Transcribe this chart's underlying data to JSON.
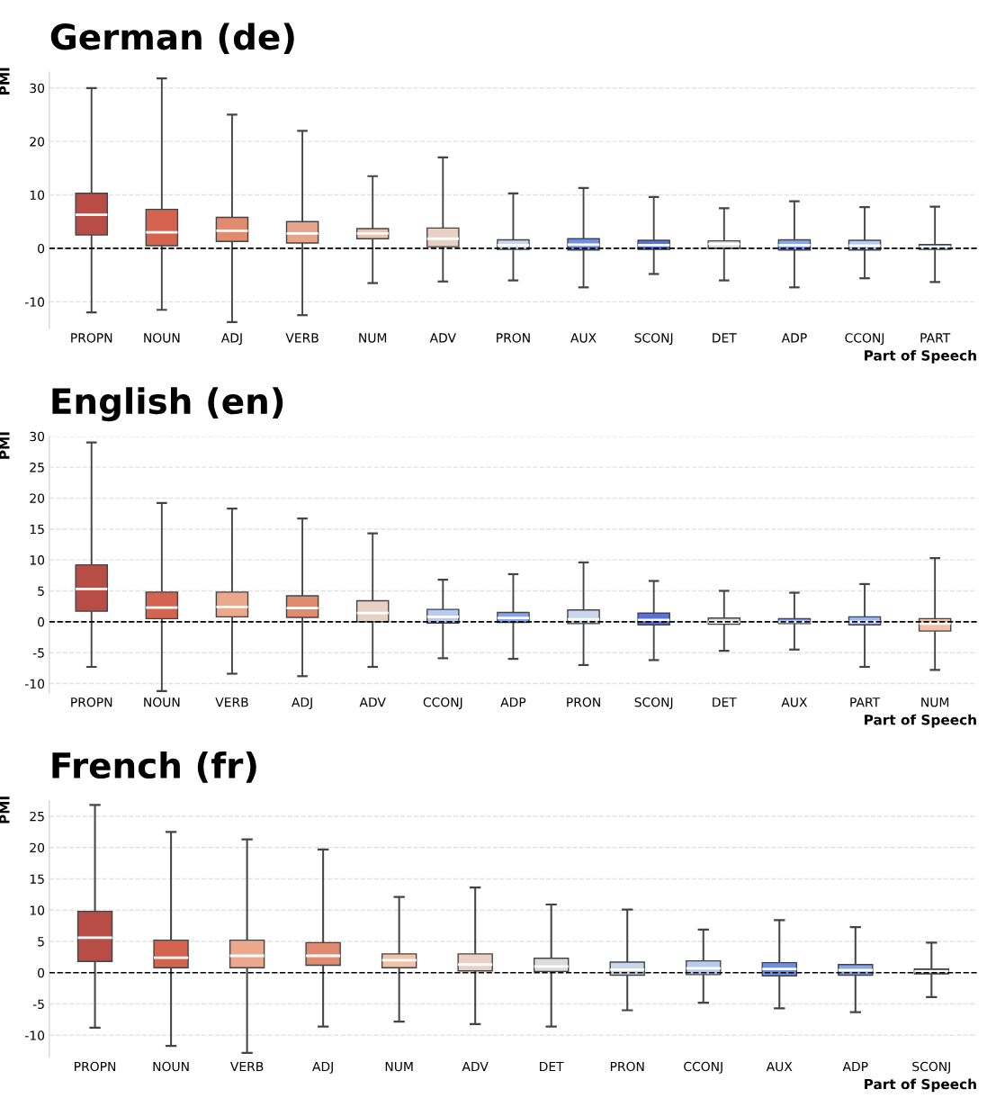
{
  "chart_data": [
    {
      "type": "box",
      "title": "German (de)",
      "xlabel": "Part of Speech",
      "ylabel": "PMI",
      "ylim": [
        -15,
        33
      ],
      "yticks": [
        -10,
        0,
        10,
        20,
        30
      ],
      "grid": "y",
      "ref_lines": [
        {
          "axis": "y",
          "value": 0,
          "color": "#000000",
          "line_style": "dashed"
        }
      ],
      "categories": [
        "PROPN",
        "NOUN",
        "ADJ",
        "VERB",
        "NUM",
        "ADV",
        "PRON",
        "AUX",
        "SCONJ",
        "DET",
        "ADP",
        "CCONJ",
        "PART"
      ],
      "colors": [
        "#b84d45",
        "#d4634f",
        "#e08a70",
        "#e8a488",
        "#f0c2a8",
        "#e8d0c4",
        "#c9d6ec",
        "#6f8fe0",
        "#5b72d0",
        "#dcdcdc",
        "#86a6ee",
        "#b6ccf2",
        "#9ab6f2"
      ],
      "boxes": [
        {
          "low": -12,
          "q1": 2.5,
          "median": 6.3,
          "q3": 10.3,
          "high": 30
        },
        {
          "low": -11.5,
          "q1": 0.5,
          "median": 3,
          "q3": 7.3,
          "high": 31.8
        },
        {
          "low": -13.8,
          "q1": 1.3,
          "median": 3.3,
          "q3": 5.8,
          "high": 25
        },
        {
          "low": -12.5,
          "q1": 1,
          "median": 2.8,
          "q3": 5,
          "high": 22
        },
        {
          "low": -6.5,
          "q1": 1.8,
          "median": 2.8,
          "q3": 3.7,
          "high": 13.5
        },
        {
          "low": -6.2,
          "q1": 0.3,
          "median": 1.8,
          "q3": 3.8,
          "high": 17
        },
        {
          "low": -6,
          "q1": -0.2,
          "median": 0.6,
          "q3": 1.6,
          "high": 10.3
        },
        {
          "low": -7.3,
          "q1": -0.3,
          "median": 0.7,
          "q3": 1.8,
          "high": 11.3
        },
        {
          "low": -4.8,
          "q1": -0.2,
          "median": 0.6,
          "q3": 1.5,
          "high": 9.6
        },
        {
          "low": -6,
          "q1": 0,
          "median": 0.8,
          "q3": 1.4,
          "high": 7.5
        },
        {
          "low": -7.3,
          "q1": -0.3,
          "median": 0.6,
          "q3": 1.6,
          "high": 8.8
        },
        {
          "low": -5.6,
          "q1": -0.3,
          "median": 0.5,
          "q3": 1.5,
          "high": 7.7
        },
        {
          "low": -6.3,
          "q1": -0.2,
          "median": 0.2,
          "q3": 0.7,
          "high": 7.8
        }
      ]
    },
    {
      "type": "box",
      "title": "English (en)",
      "xlabel": "Part of Speech",
      "ylabel": "PMI",
      "ylim": [
        -11.5,
        30
      ],
      "yticks": [
        -10,
        -5,
        0,
        5,
        10,
        15,
        20,
        25,
        30
      ],
      "grid": "y",
      "ref_lines": [
        {
          "axis": "y",
          "value": 0,
          "color": "#000000",
          "line_style": "dashed"
        }
      ],
      "categories": [
        "PROPN",
        "NOUN",
        "VERB",
        "ADJ",
        "ADV",
        "CCONJ",
        "ADP",
        "PRON",
        "SCONJ",
        "DET",
        "AUX",
        "PART",
        "NUM"
      ],
      "colors": [
        "#b84d45",
        "#d4634f",
        "#eaa88c",
        "#e08a70",
        "#e8d0c4",
        "#b6ccf2",
        "#86a6ee",
        "#c9d6ec",
        "#5b72d0",
        "#dcdcdc",
        "#6f8fe0",
        "#9ab6f2",
        "#f0c2a8"
      ],
      "boxes": [
        {
          "low": -7.3,
          "q1": 1.7,
          "median": 5.3,
          "q3": 9.2,
          "high": 29
        },
        {
          "low": -11.2,
          "q1": 0.5,
          "median": 2.3,
          "q3": 4.8,
          "high": 19.2
        },
        {
          "low": -8.4,
          "q1": 0.8,
          "median": 2.4,
          "q3": 4.8,
          "high": 18.3
        },
        {
          "low": -8.8,
          "q1": 0.7,
          "median": 2.2,
          "q3": 4.2,
          "high": 16.7
        },
        {
          "low": -7.3,
          "q1": 0,
          "median": 1.4,
          "q3": 3.4,
          "high": 14.3
        },
        {
          "low": -5.9,
          "q1": -0.2,
          "median": 0.8,
          "q3": 2,
          "high": 6.8
        },
        {
          "low": -6,
          "q1": -0.1,
          "median": 0.6,
          "q3": 1.5,
          "high": 7.7
        },
        {
          "low": -7,
          "q1": -0.3,
          "median": 0.4,
          "q3": 1.9,
          "high": 9.6
        },
        {
          "low": -6.2,
          "q1": -0.5,
          "median": 0.3,
          "q3": 1.4,
          "high": 6.6
        },
        {
          "low": -4.7,
          "q1": -0.4,
          "median": 0,
          "q3": 0.6,
          "high": 5
        },
        {
          "low": -4.5,
          "q1": -0.3,
          "median": 0,
          "q3": 0.5,
          "high": 4.7
        },
        {
          "low": -7.3,
          "q1": -0.5,
          "median": 0,
          "q3": 0.8,
          "high": 6.1
        },
        {
          "low": -7.8,
          "q1": -1.5,
          "median": -0.3,
          "q3": 0.5,
          "high": 10.3
        }
      ]
    },
    {
      "type": "box",
      "title": "French (fr)",
      "xlabel": "Part of Speech",
      "ylabel": "PMI",
      "ylim": [
        -13.5,
        27.5
      ],
      "yticks": [
        -10,
        -5,
        0,
        5,
        10,
        15,
        20,
        25
      ],
      "grid": "y",
      "ref_lines": [
        {
          "axis": "y",
          "value": 0,
          "color": "#000000",
          "line_style": "dashed"
        }
      ],
      "categories": [
        "PROPN",
        "NOUN",
        "VERB",
        "ADJ",
        "NUM",
        "ADV",
        "DET",
        "PRON",
        "CCONJ",
        "AUX",
        "ADP",
        "SCONJ"
      ],
      "colors": [
        "#b84d45",
        "#d4634f",
        "#eaa88c",
        "#e08a70",
        "#f0c2a8",
        "#e8d0c4",
        "#dcdcdc",
        "#c9d6ec",
        "#b6ccf2",
        "#6f8fe0",
        "#86a6ee",
        "#5b72d0"
      ],
      "boxes": [
        {
          "low": -8.8,
          "q1": 1.8,
          "median": 5.6,
          "q3": 9.8,
          "high": 26.8
        },
        {
          "low": -11.7,
          "q1": 0.8,
          "median": 2.4,
          "q3": 5.2,
          "high": 22.5
        },
        {
          "low": -12.8,
          "q1": 0.8,
          "median": 2.7,
          "q3": 5.2,
          "high": 21.3
        },
        {
          "low": -8.6,
          "q1": 1.2,
          "median": 2.7,
          "q3": 4.8,
          "high": 19.7
        },
        {
          "low": -7.8,
          "q1": 0.8,
          "median": 2,
          "q3": 3,
          "high": 12.1
        },
        {
          "low": -8.2,
          "q1": 0.3,
          "median": 1.3,
          "q3": 3,
          "high": 13.6
        },
        {
          "low": -8.6,
          "q1": 0.2,
          "median": 1,
          "q3": 2.3,
          "high": 10.9
        },
        {
          "low": -6,
          "q1": -0.4,
          "median": 0.5,
          "q3": 1.7,
          "high": 10.1
        },
        {
          "low": -4.8,
          "q1": -0.3,
          "median": 0.7,
          "q3": 1.9,
          "high": 6.9
        },
        {
          "low": -5.7,
          "q1": -0.5,
          "median": 0.6,
          "q3": 1.6,
          "high": 8.4
        },
        {
          "low": -6.3,
          "q1": -0.4,
          "median": 0.4,
          "q3": 1.3,
          "high": 7.3
        },
        {
          "low": -3.9,
          "q1": -0.2,
          "median": 0.2,
          "q3": 0.6,
          "high": 4.8
        }
      ]
    }
  ]
}
